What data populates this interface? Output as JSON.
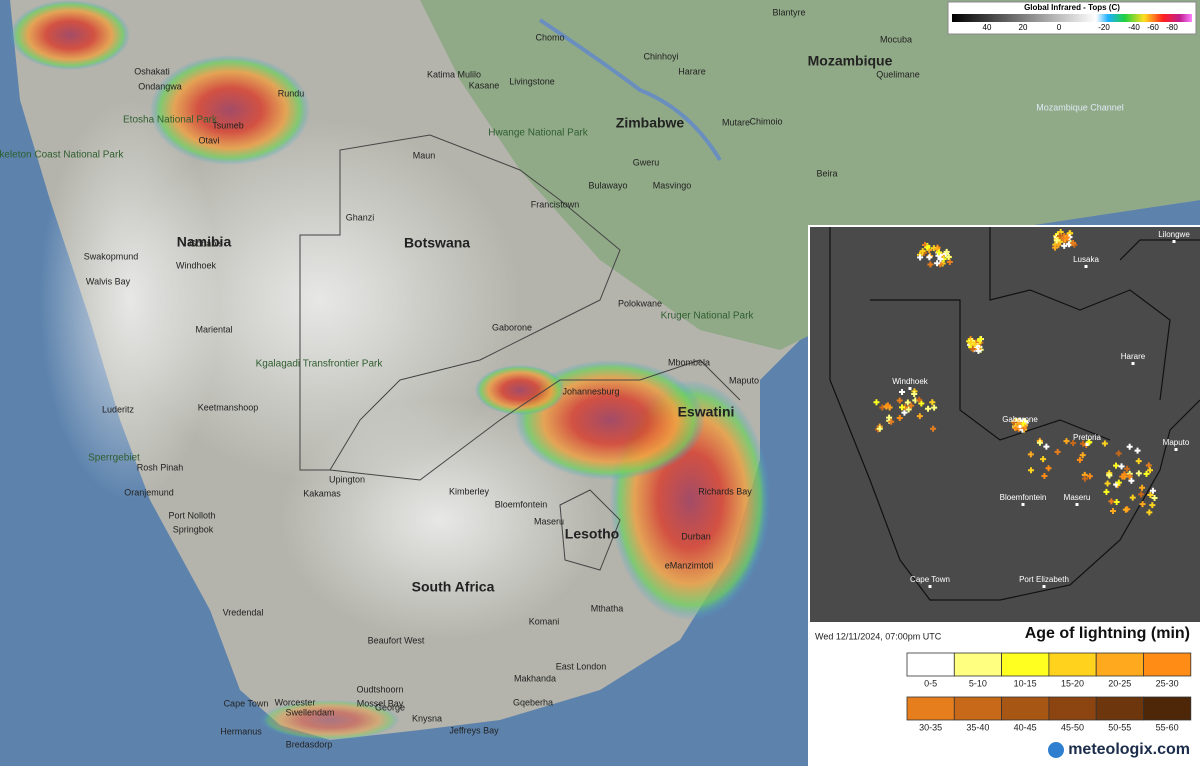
{
  "map": {
    "countries": [
      "Mozambique",
      "Zimbabwe",
      "Botswana",
      "Namibia",
      "South Africa",
      "Lesotho",
      "Eswatini"
    ],
    "cities": [
      "Harare",
      "Bulawayo",
      "Gaborone",
      "Johannesburg",
      "Bloemfontein",
      "Durban",
      "Maputo",
      "Cape Town",
      "Windhoek",
      "Livingstone",
      "Francistown",
      "Polokwane",
      "Kimberley",
      "Upington",
      "East London",
      "Gqeberha",
      "Quelimane",
      "Beira",
      "Chimoio",
      "Mutare",
      "Masvingo",
      "Gweru",
      "Maun",
      "Ghanzi",
      "Ondangwa",
      "Oshakati",
      "Rundu",
      "Tsumeb",
      "Otavi",
      "Walvis Bay",
      "Swakopmund",
      "Luderitz",
      "Keetmanshoop",
      "Oranjemund",
      "Springbok",
      "Mthatha",
      "Komani",
      "Beaufort West",
      "Oudtshoorn",
      "George",
      "Knysna",
      "Mossel Bay",
      "Hermanus",
      "Worcester",
      "Swellendam",
      "Bredasdorp",
      "Jeffreys Bay",
      "Makhanda",
      "Vredendal",
      "Richards Bay",
      "eManzimtoti",
      "Mbombela",
      "Kasane",
      "Katima Mulilo",
      "Blantyre",
      "Chinhoyi",
      "Maseru",
      "Gobabis",
      "Mariental",
      "Rosh Pinah",
      "Port Nolloth",
      "Kakamas",
      "Mocuba",
      "Chomo"
    ],
    "parks": [
      "Skeleton Coast National Park",
      "Etosha National Park",
      "Hwange National Park",
      "Kruger National Park",
      "Kgalagadi Transfrontier Park",
      "Sperrgebiet"
    ],
    "seas": [
      "Mozambique Channel"
    ]
  },
  "infrared_legend": {
    "title": "Global Infrared - Tops (C)",
    "ticks": [
      40,
      20,
      0,
      -20,
      -40,
      -60,
      -80
    ]
  },
  "inset": {
    "cities": [
      "Lilongwe",
      "Lusaka",
      "Harare",
      "Windhoek",
      "Gaborone",
      "Pretoria",
      "Maputo",
      "Bloemfontein",
      "Maseru",
      "Cape Town",
      "Port Elizabeth"
    ],
    "timestamp": "Wed 12/11/2024, 07:00pm UTC",
    "title": "Age of lightning (min)",
    "bins": [
      {
        "label": "0-5",
        "color": "#ffffff"
      },
      {
        "label": "5-10",
        "color": "#ffff80"
      },
      {
        "label": "10-15",
        "color": "#ffff20"
      },
      {
        "label": "15-20",
        "color": "#ffd21e"
      },
      {
        "label": "20-25",
        "color": "#ffaa1e"
      },
      {
        "label": "25-30",
        "color": "#ff8c14"
      },
      {
        "label": "30-35",
        "color": "#e67e1e"
      },
      {
        "label": "35-40",
        "color": "#c8691a"
      },
      {
        "label": "40-45",
        "color": "#a85614"
      },
      {
        "label": "45-50",
        "color": "#8c4510"
      },
      {
        "label": "50-55",
        "color": "#6e360c"
      },
      {
        "label": "55-60",
        "color": "#4e2608"
      }
    ]
  },
  "logo": "meteologix.com"
}
